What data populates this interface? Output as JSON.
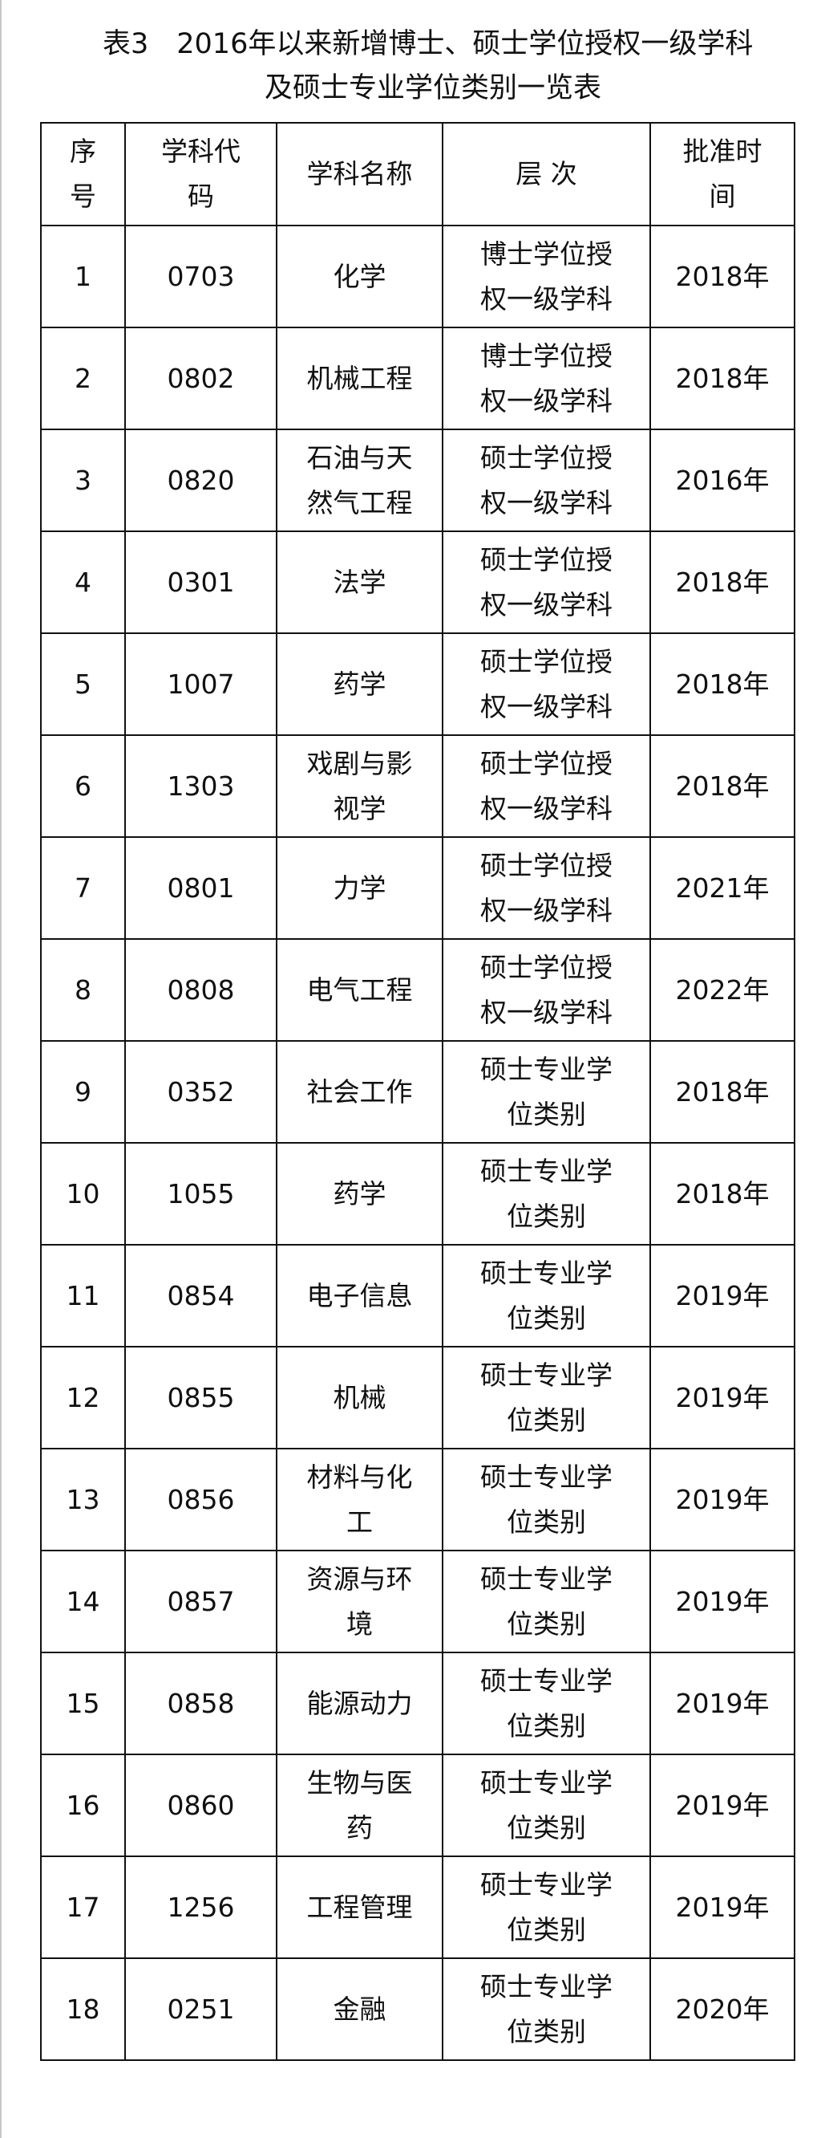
{
  "title": {
    "line1": "表3　2016年以来新增博士、硕士学位授权一级学科",
    "line2": "及硕士专业学位类别一览表"
  },
  "table": {
    "headers": [
      "序\n号",
      "学科代\n码",
      "学科名称",
      "层 次",
      "批准时\n间"
    ],
    "rows": [
      [
        "1",
        "0703",
        "化学",
        "博士学位授\n权一级学科",
        "2018年"
      ],
      [
        "2",
        "0802",
        "机械工程",
        "博士学位授\n权一级学科",
        "2018年"
      ],
      [
        "3",
        "0820",
        "石油与天\n然气工程",
        "硕士学位授\n权一级学科",
        "2016年"
      ],
      [
        "4",
        "0301",
        "法学",
        "硕士学位授\n权一级学科",
        "2018年"
      ],
      [
        "5",
        "1007",
        "药学",
        "硕士学位授\n权一级学科",
        "2018年"
      ],
      [
        "6",
        "1303",
        "戏剧与影\n视学",
        "硕士学位授\n权一级学科",
        "2018年"
      ],
      [
        "7",
        "0801",
        "力学",
        "硕士学位授\n权一级学科",
        "2021年"
      ],
      [
        "8",
        "0808",
        "电气工程",
        "硕士学位授\n权一级学科",
        "2022年"
      ],
      [
        "9",
        "0352",
        "社会工作",
        "硕士专业学\n位类别",
        "2018年"
      ],
      [
        "10",
        "1055",
        "药学",
        "硕士专业学\n位类别",
        "2018年"
      ],
      [
        "11",
        "0854",
        "电子信息",
        "硕士专业学\n位类别",
        "2019年"
      ],
      [
        "12",
        "0855",
        "机械",
        "硕士专业学\n位类别",
        "2019年"
      ],
      [
        "13",
        "0856",
        "材料与化\n工",
        "硕士专业学\n位类别",
        "2019年"
      ],
      [
        "14",
        "0857",
        "资源与环\n境",
        "硕士专业学\n位类别",
        "2019年"
      ],
      [
        "15",
        "0858",
        "能源动力",
        "硕士专业学\n位类别",
        "2019年"
      ],
      [
        "16",
        "0860",
        "生物与医\n药",
        "硕士专业学\n位类别",
        "2019年"
      ],
      [
        "17",
        "1256",
        "工程管理",
        "硕士专业学\n位类别",
        "2019年"
      ],
      [
        "18",
        "0251",
        "金融",
        "硕士专业学\n位类别",
        "2020年"
      ]
    ]
  }
}
